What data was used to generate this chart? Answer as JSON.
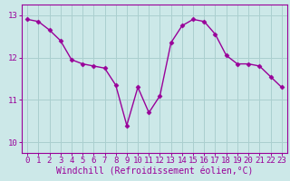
{
  "x": [
    0,
    1,
    2,
    3,
    4,
    5,
    6,
    7,
    8,
    9,
    10,
    11,
    12,
    13,
    14,
    15,
    16,
    17,
    18,
    19,
    20,
    21,
    22,
    23
  ],
  "y": [
    12.9,
    12.85,
    12.65,
    12.4,
    11.95,
    11.85,
    11.8,
    11.75,
    11.35,
    10.4,
    11.3,
    10.7,
    11.1,
    12.35,
    12.75,
    12.9,
    12.85,
    12.55,
    12.05,
    11.85,
    11.85,
    11.8,
    11.55,
    11.3
  ],
  "line_color": "#990099",
  "marker": "D",
  "marker_size": 2.5,
  "linewidth": 1.0,
  "bg_color": "#cce8e8",
  "grid_color": "#aacfcf",
  "xlabel": "Windchill (Refroidissement éolien,°C)",
  "xlabel_fontsize": 7.0,
  "tick_fontsize": 6.5,
  "ylabel_ticks": [
    10,
    11,
    12,
    13
  ],
  "xlim": [
    -0.5,
    23.5
  ],
  "ylim": [
    9.75,
    13.25
  ]
}
